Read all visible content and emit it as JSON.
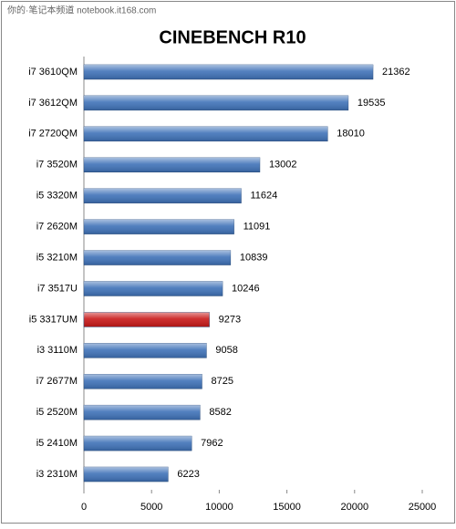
{
  "watermark": "你的·笔记本频道 notebook.it168.com",
  "chart_data": {
    "type": "barh",
    "title": "CINEBENCH R10",
    "categories": [
      "i7 3610QM",
      "i7 3612QM",
      "i7 2720QM",
      "i7 3520M",
      "i5 3320M",
      "i7 2620M",
      "i5 3210M",
      "i7 3517U",
      "i5 3317UM",
      "i3 3110M",
      "i7 2677M",
      "i5 2520M",
      "i5 2410M",
      "i3 2310M"
    ],
    "values": [
      21362,
      19535,
      18010,
      13002,
      11624,
      11091,
      10839,
      10246,
      9273,
      9058,
      8725,
      8582,
      7962,
      6223
    ],
    "colors": [
      "#3f72b8",
      "#3f72b8",
      "#3f72b8",
      "#3f72b8",
      "#3f72b8",
      "#3f72b8",
      "#3f72b8",
      "#3f72b8",
      "#c81818",
      "#3f72b8",
      "#3f72b8",
      "#3f72b8",
      "#3f72b8",
      "#3f72b8"
    ],
    "xlim": [
      0,
      25000
    ],
    "xticks": [
      0,
      5000,
      10000,
      15000,
      20000,
      25000
    ]
  }
}
